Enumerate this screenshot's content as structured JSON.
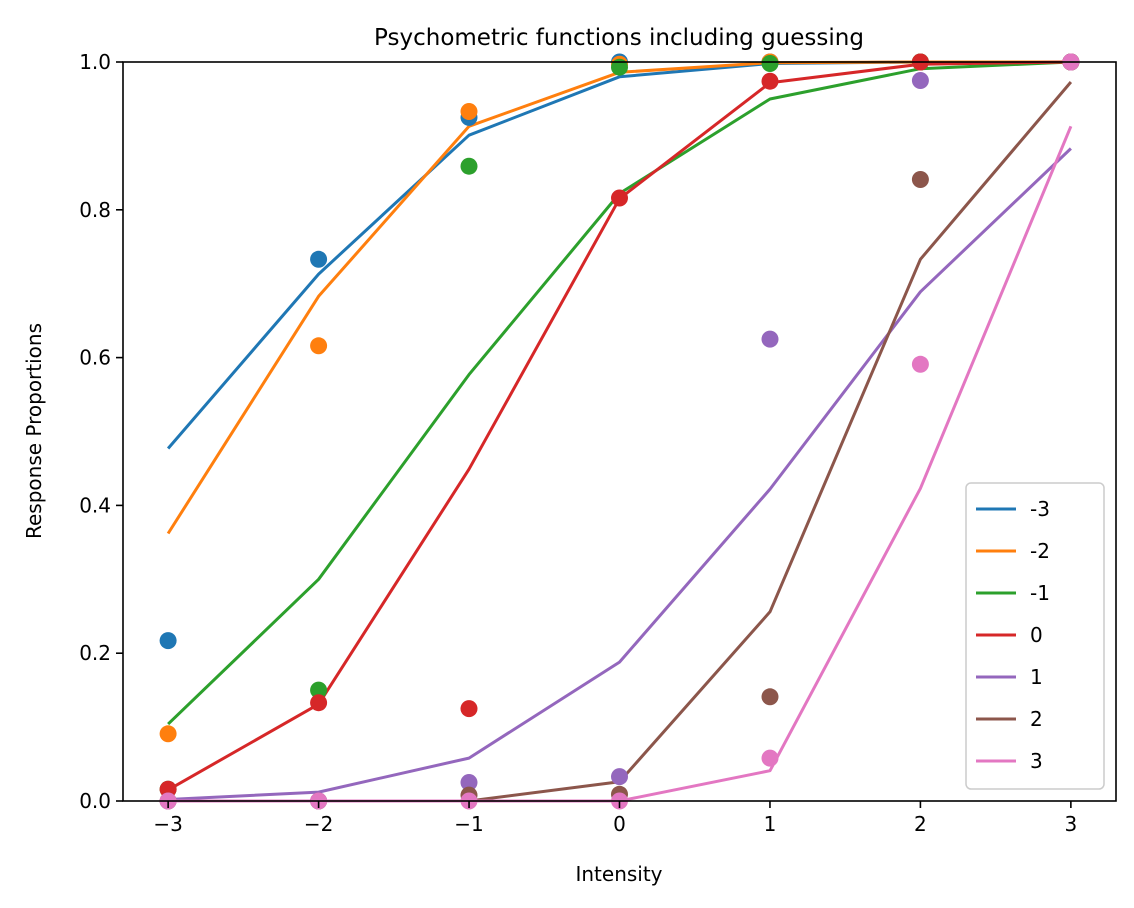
{
  "chart_data": {
    "type": "line",
    "title": "Psychometric functions including guessing",
    "xlabel": "Intensity",
    "ylabel": "Response Proportions",
    "xlim": [
      -3.3,
      3.3
    ],
    "ylim": [
      0.0,
      1.0
    ],
    "xticks": [
      -3,
      -2,
      -1,
      0,
      1,
      2,
      3
    ],
    "xtick_labels": [
      "−3",
      "−2",
      "−1",
      "0",
      "1",
      "2",
      "3"
    ],
    "yticks": [
      0.0,
      0.2,
      0.4,
      0.6,
      0.8,
      1.0
    ],
    "ytick_labels": [
      "0.0",
      "0.2",
      "0.4",
      "0.6",
      "0.8",
      "1.0"
    ],
    "grid": false,
    "legend_position": "lower right",
    "x": [
      -3,
      -2,
      -1,
      0,
      1,
      2,
      3
    ],
    "series": [
      {
        "name": "-3",
        "color": "#1f77b4",
        "fit": [
          0.477,
          0.713,
          0.901,
          0.98,
          0.998,
          1.0,
          1.0
        ],
        "points": [
          0.217,
          0.733,
          0.925,
          1.0,
          1.0,
          1.0,
          1.0
        ]
      },
      {
        "name": "-2",
        "color": "#ff7f0e",
        "fit": [
          0.362,
          0.683,
          0.913,
          0.986,
          0.999,
          1.0,
          1.0
        ],
        "points": [
          0.091,
          0.616,
          0.933,
          0.997,
          1.0,
          1.0,
          1.0
        ]
      },
      {
        "name": "-1",
        "color": "#2ca02c",
        "fit": [
          0.104,
          0.3,
          0.577,
          0.822,
          0.95,
          0.991,
          1.0
        ],
        "points": [
          0.016,
          0.15,
          0.859,
          0.993,
          0.998,
          1.0,
          1.0
        ]
      },
      {
        "name": "0",
        "color": "#d62728",
        "fit": [
          0.015,
          0.131,
          0.449,
          0.815,
          0.972,
          0.997,
          1.0
        ],
        "points": [
          0.016,
          0.133,
          0.125,
          0.816,
          0.974,
          1.0,
          1.0
        ]
      },
      {
        "name": "1",
        "color": "#9467bd",
        "fit": [
          0.002,
          0.012,
          0.058,
          0.188,
          0.422,
          0.689,
          0.883
        ],
        "points": [
          0.0,
          0.0,
          0.025,
          0.033,
          0.625,
          0.975,
          1.0
        ]
      },
      {
        "name": "2",
        "color": "#8c564b",
        "fit": [
          0.0,
          0.0,
          0.0,
          0.026,
          0.256,
          0.733,
          0.973
        ],
        "points": [
          0.0,
          0.0,
          0.008,
          0.009,
          0.141,
          0.841,
          1.0
        ]
      },
      {
        "name": "3",
        "color": "#e377c2",
        "fit": [
          0.0,
          0.0,
          0.0,
          0.0,
          0.041,
          0.423,
          0.913
        ],
        "points": [
          0.0,
          0.0,
          0.0,
          0.0,
          0.058,
          0.591,
          1.0
        ]
      }
    ]
  }
}
